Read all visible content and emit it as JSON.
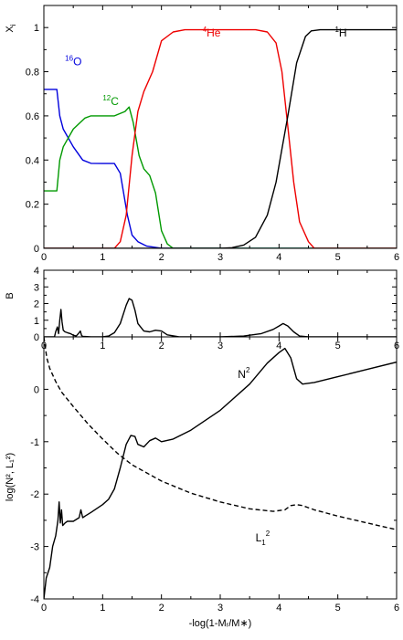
{
  "colors": {
    "O16": "#0000dd",
    "C12": "#009900",
    "He4": "#ee0000",
    "H1": "#000000"
  },
  "chart_data": [
    {
      "type": "line",
      "panel": "abundance",
      "xlim": [
        0,
        6
      ],
      "ylim": [
        0,
        1.1
      ],
      "xticks": [
        "0",
        "1",
        "2",
        "3",
        "4",
        "5",
        "6"
      ],
      "yticks": [
        "0",
        "0.2",
        "0.4",
        "0.6",
        "0.8",
        "1"
      ],
      "ylabel_main": "X",
      "ylabel_sub": "i",
      "annotations": [
        {
          "sup": "16",
          "text": "O",
          "color": "#0000dd",
          "x": 0.36,
          "y": 0.83
        },
        {
          "sup": "12",
          "text": "C",
          "color": "#009900",
          "x": 1.0,
          "y": 0.65
        },
        {
          "sup": "4",
          "text": "He",
          "color": "#ee0000",
          "x": 2.7,
          "y": 0.96
        },
        {
          "sup": "1",
          "text": "H",
          "color": "#000000",
          "x": 4.95,
          "y": 0.96
        }
      ],
      "series": [
        {
          "color": "#0000dd",
          "x": [
            0,
            0.22,
            0.27,
            0.33,
            0.5,
            0.66,
            0.8,
            1.0,
            1.2,
            1.3,
            1.42,
            1.5,
            1.6,
            1.75,
            2.0,
            3,
            6
          ],
          "y": [
            0.72,
            0.72,
            0.6,
            0.54,
            0.46,
            0.4,
            0.385,
            0.384,
            0.384,
            0.34,
            0.15,
            0.06,
            0.03,
            0.01,
            0.0,
            0.0,
            0.0
          ]
        },
        {
          "color": "#009900",
          "x": [
            0,
            0.22,
            0.27,
            0.33,
            0.5,
            0.7,
            0.8,
            1.2,
            1.38,
            1.45,
            1.52,
            1.62,
            1.7,
            1.8,
            1.9,
            2.0,
            2.1,
            2.2,
            3,
            6
          ],
          "y": [
            0.26,
            0.26,
            0.4,
            0.46,
            0.54,
            0.59,
            0.6,
            0.6,
            0.62,
            0.64,
            0.57,
            0.42,
            0.36,
            0.33,
            0.25,
            0.08,
            0.02,
            0.0,
            0.0,
            0.0
          ]
        },
        {
          "color": "#ee0000",
          "x": [
            0,
            1.2,
            1.3,
            1.4,
            1.5,
            1.6,
            1.7,
            1.85,
            2.0,
            2.2,
            2.4,
            3.0,
            3.6,
            3.8,
            3.95,
            4.05,
            4.15,
            4.25,
            4.35,
            4.5,
            4.6,
            6
          ],
          "y": [
            0,
            0,
            0.03,
            0.15,
            0.42,
            0.62,
            0.71,
            0.8,
            0.94,
            0.98,
            0.99,
            0.99,
            0.99,
            0.98,
            0.93,
            0.8,
            0.55,
            0.3,
            0.12,
            0.03,
            0.0,
            0.0
          ]
        },
        {
          "color": "#000000",
          "x": [
            0,
            3.0,
            3.2,
            3.4,
            3.6,
            3.8,
            3.95,
            4.05,
            4.15,
            4.3,
            4.45,
            4.55,
            4.7,
            5,
            6
          ],
          "y": [
            0,
            0,
            0.003,
            0.015,
            0.05,
            0.15,
            0.3,
            0.45,
            0.6,
            0.84,
            0.96,
            0.985,
            0.99,
            0.99,
            0.99
          ]
        }
      ]
    },
    {
      "type": "line",
      "panel": "buoyancy",
      "xlim": [
        0,
        6
      ],
      "ylim": [
        0,
        4
      ],
      "xticks": [
        "0",
        "1",
        "2",
        "3",
        "4",
        "5",
        "6"
      ],
      "yticks": [
        "0",
        "1",
        "2",
        "3",
        "4"
      ],
      "ylabel": "B",
      "series": [
        {
          "color": "#000000",
          "x": [
            0,
            0.18,
            0.2,
            0.23,
            0.25,
            0.27,
            0.29,
            0.31,
            0.33,
            0.36,
            0.4,
            0.45,
            0.5,
            0.55,
            0.6,
            0.62,
            0.64,
            0.66,
            0.7,
            0.8,
            1.0,
            1.1,
            1.2,
            1.3,
            1.4,
            1.45,
            1.5,
            1.55,
            1.6,
            1.7,
            1.8,
            1.9,
            2.0,
            2.1,
            2.3,
            2.6,
            3.0,
            3.4,
            3.7,
            3.9,
            4.0,
            4.07,
            4.15,
            4.25,
            4.35,
            4.5,
            6
          ],
          "y": [
            0,
            0,
            0.3,
            0.6,
            0.2,
            1.0,
            1.65,
            0.9,
            0.4,
            0.3,
            0.25,
            0.2,
            0.1,
            0.05,
            0.25,
            0.35,
            0.1,
            0.03,
            0.02,
            0.0,
            0.0,
            0.05,
            0.25,
            0.8,
            1.9,
            2.3,
            2.2,
            1.6,
            0.8,
            0.35,
            0.3,
            0.4,
            0.35,
            0.12,
            0.0,
            0.0,
            0.0,
            0.05,
            0.2,
            0.45,
            0.65,
            0.8,
            0.65,
            0.3,
            0.05,
            0.0,
            0.0
          ]
        }
      ]
    },
    {
      "type": "line",
      "panel": "frequencies",
      "xlim": [
        0,
        6
      ],
      "ylim": [
        -4,
        1
      ],
      "xticks": [
        "0",
        "1",
        "2",
        "3",
        "4",
        "5",
        "6"
      ],
      "yticks": [
        "-4",
        "-3",
        "-2",
        "-1",
        "0"
      ],
      "ylabel": "log(N², L₁²)",
      "xlabel": "-log(1-Mᵣ/M∗)",
      "annotations": [
        {
          "text": "N",
          "sup": "2",
          "x": 3.3,
          "y": 0.22
        },
        {
          "text": "L",
          "sub": "1",
          "sup": "2",
          "x": 3.6,
          "y": -2.9
        }
      ],
      "series": [
        {
          "name": "N²",
          "style": "solid",
          "color": "#000000",
          "x": [
            0,
            0.04,
            0.1,
            0.15,
            0.2,
            0.24,
            0.26,
            0.28,
            0.3,
            0.32,
            0.36,
            0.4,
            0.5,
            0.6,
            0.63,
            0.66,
            0.7,
            0.8,
            1.0,
            1.1,
            1.2,
            1.3,
            1.4,
            1.48,
            1.55,
            1.6,
            1.7,
            1.8,
            1.9,
            2.0,
            2.2,
            2.5,
            3.0,
            3.5,
            3.8,
            4.0,
            4.1,
            4.2,
            4.3,
            4.4,
            4.6,
            5.0,
            5.5,
            6.0
          ],
          "y": [
            -4.0,
            -3.6,
            -3.4,
            -3.0,
            -2.8,
            -2.5,
            -2.15,
            -2.55,
            -2.3,
            -2.6,
            -2.55,
            -2.52,
            -2.52,
            -2.45,
            -2.3,
            -2.45,
            -2.42,
            -2.35,
            -2.2,
            -2.1,
            -1.9,
            -1.5,
            -1.05,
            -0.88,
            -0.9,
            -1.05,
            -1.1,
            -0.98,
            -0.93,
            -1.0,
            -0.95,
            -0.78,
            -0.4,
            0.1,
            0.5,
            0.7,
            0.78,
            0.6,
            0.2,
            0.1,
            0.13,
            0.24,
            0.38,
            0.52
          ]
        },
        {
          "name": "L₁²",
          "style": "dashed",
          "color": "#000000",
          "x": [
            0,
            0.05,
            0.1,
            0.2,
            0.3,
            0.5,
            0.75,
            1.0,
            1.25,
            1.5,
            2.0,
            2.5,
            3.0,
            3.5,
            3.9,
            4.1,
            4.2,
            4.3,
            4.4,
            4.6,
            5.0,
            5.5,
            6.0
          ],
          "y": [
            1.0,
            0.6,
            0.4,
            0.15,
            -0.05,
            -0.33,
            -0.66,
            -0.95,
            -1.22,
            -1.44,
            -1.75,
            -1.98,
            -2.15,
            -2.28,
            -2.33,
            -2.3,
            -2.22,
            -2.2,
            -2.22,
            -2.3,
            -2.42,
            -2.55,
            -2.68
          ]
        }
      ]
    }
  ]
}
